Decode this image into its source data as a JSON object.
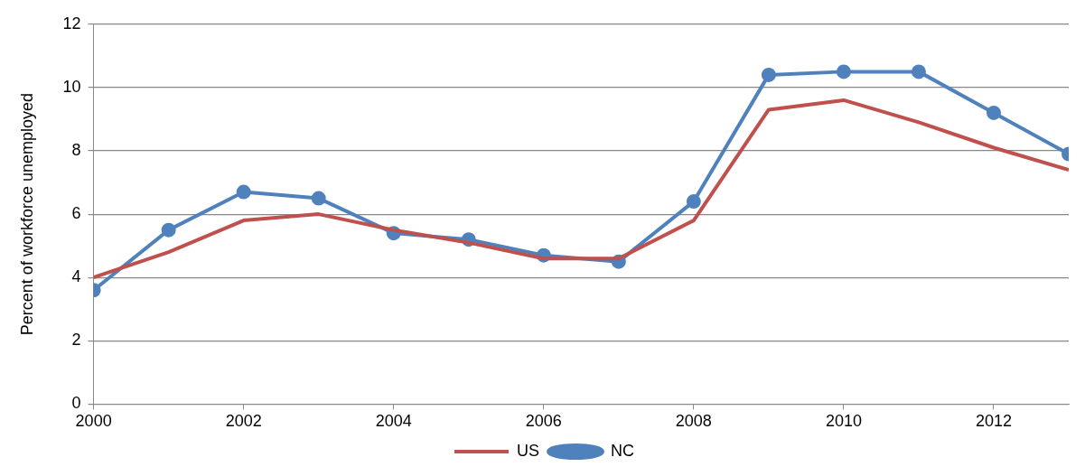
{
  "chart_data": {
    "type": "line",
    "ylabel": "Percent of workforce unemployed",
    "x": [
      2000,
      2001,
      2002,
      2003,
      2004,
      2005,
      2006,
      2007,
      2008,
      2009,
      2010,
      2011,
      2012,
      2013
    ],
    "series": [
      {
        "name": "NC",
        "color": "#4f81bd",
        "marker": "circle",
        "values": [
          3.6,
          5.5,
          6.7,
          6.5,
          5.4,
          5.2,
          4.7,
          4.5,
          6.4,
          10.4,
          10.5,
          10.5,
          9.2,
          7.9
        ]
      },
      {
        "name": "US",
        "color": "#c0504d",
        "marker": "none",
        "values": [
          4.0,
          4.8,
          5.8,
          6.0,
          5.5,
          5.1,
          4.6,
          4.6,
          5.8,
          9.3,
          9.6,
          8.9,
          8.1,
          7.4
        ]
      }
    ],
    "xlim": [
      2000,
      2013
    ],
    "xticks": [
      2000,
      2002,
      2004,
      2006,
      2008,
      2010,
      2012
    ],
    "ylim": [
      0,
      12
    ],
    "yticks": [
      0,
      2,
      4,
      6,
      8,
      10,
      12
    ],
    "grid": "y",
    "legend": "bottom"
  }
}
